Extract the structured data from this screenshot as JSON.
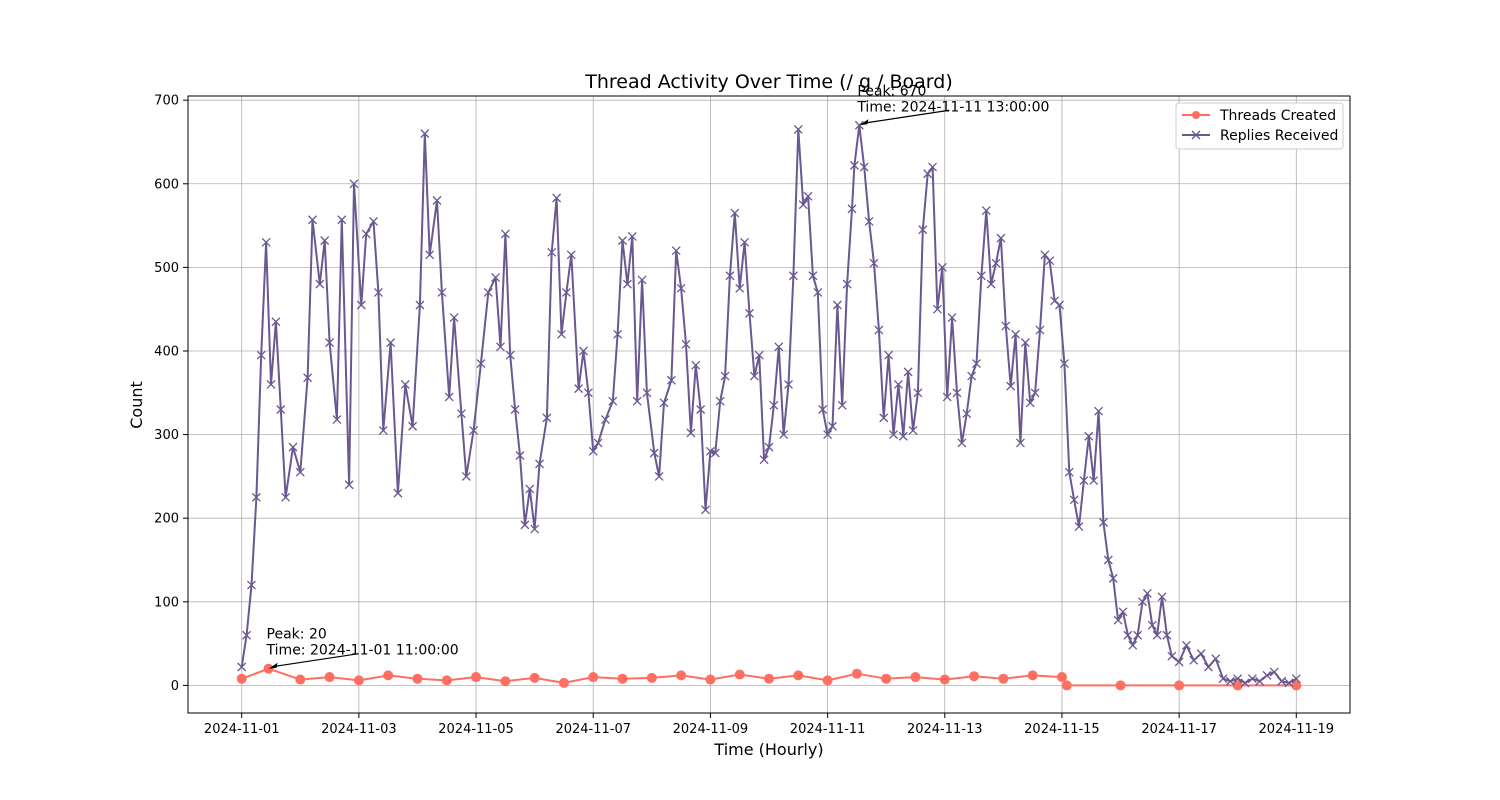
{
  "chart_data": {
    "type": "line",
    "title": "Thread Activity Over Time (/ g / Board)",
    "xlabel": "Time (Hourly)",
    "ylabel": "Count",
    "xlim": [
      "2024-10-31 02:00",
      "2024-11-19 22:00"
    ],
    "ylim": [
      -33,
      705
    ],
    "x_ticks": [
      "2024-11-01",
      "2024-11-03",
      "2024-11-05",
      "2024-11-07",
      "2024-11-09",
      "2024-11-11",
      "2024-11-13",
      "2024-11-15",
      "2024-11-17",
      "2024-11-19"
    ],
    "y_ticks": [
      0,
      100,
      200,
      300,
      400,
      500,
      600,
      700
    ],
    "grid": true,
    "legend": "top-right",
    "series": [
      {
        "name": "Threads Created",
        "color": "#ff6f61",
        "marker": "circle",
        "points": [
          [
            "2024-11-01 00:00",
            8
          ],
          [
            "2024-11-01 11:00",
            20
          ],
          [
            "2024-11-02 00:00",
            7
          ],
          [
            "2024-11-02 12:00",
            10
          ],
          [
            "2024-11-03 00:00",
            6
          ],
          [
            "2024-11-03 12:00",
            12
          ],
          [
            "2024-11-04 00:00",
            8
          ],
          [
            "2024-11-04 12:00",
            6
          ],
          [
            "2024-11-05 00:00",
            10
          ],
          [
            "2024-11-05 12:00",
            5
          ],
          [
            "2024-11-06 00:00",
            9
          ],
          [
            "2024-11-06 12:00",
            3
          ],
          [
            "2024-11-07 00:00",
            10
          ],
          [
            "2024-11-07 12:00",
            8
          ],
          [
            "2024-11-08 00:00",
            9
          ],
          [
            "2024-11-08 12:00",
            12
          ],
          [
            "2024-11-09 00:00",
            7
          ],
          [
            "2024-11-09 12:00",
            13
          ],
          [
            "2024-11-10 00:00",
            8
          ],
          [
            "2024-11-10 12:00",
            12
          ],
          [
            "2024-11-11 00:00",
            6
          ],
          [
            "2024-11-11 12:00",
            14
          ],
          [
            "2024-11-12 00:00",
            8
          ],
          [
            "2024-11-12 12:00",
            10
          ],
          [
            "2024-11-13 00:00",
            7
          ],
          [
            "2024-11-13 12:00",
            11
          ],
          [
            "2024-11-14 00:00",
            8
          ],
          [
            "2024-11-14 12:00",
            12
          ],
          [
            "2024-11-15 00:00",
            10
          ],
          [
            "2024-11-15 02:00",
            0
          ],
          [
            "2024-11-16 00:00",
            0
          ],
          [
            "2024-11-17 00:00",
            0
          ],
          [
            "2024-11-18 00:00",
            0
          ],
          [
            "2024-11-19 00:00",
            0
          ]
        ]
      },
      {
        "name": "Replies Received",
        "color": "#6a5891",
        "marker": "x",
        "points": [
          [
            "2024-11-01 00:00",
            22
          ],
          [
            "2024-11-01 02:00",
            60
          ],
          [
            "2024-11-01 04:00",
            120
          ],
          [
            "2024-11-01 06:00",
            225
          ],
          [
            "2024-11-01 08:00",
            395
          ],
          [
            "2024-11-01 10:00",
            530
          ],
          [
            "2024-11-01 12:00",
            360
          ],
          [
            "2024-11-01 14:00",
            435
          ],
          [
            "2024-11-01 16:00",
            330
          ],
          [
            "2024-11-01 18:00",
            225
          ],
          [
            "2024-11-01 21:00",
            285
          ],
          [
            "2024-11-02 00:00",
            255
          ],
          [
            "2024-11-02 03:00",
            368
          ],
          [
            "2024-11-02 05:00",
            557
          ],
          [
            "2024-11-02 08:00",
            480
          ],
          [
            "2024-11-02 10:00",
            532
          ],
          [
            "2024-11-02 12:00",
            410
          ],
          [
            "2024-11-02 15:00",
            318
          ],
          [
            "2024-11-02 17:00",
            557
          ],
          [
            "2024-11-02 20:00",
            240
          ],
          [
            "2024-11-02 22:00",
            600
          ],
          [
            "2024-11-03 01:00",
            455
          ],
          [
            "2024-11-03 03:00",
            540
          ],
          [
            "2024-11-03 06:00",
            555
          ],
          [
            "2024-11-03 08:00",
            470
          ],
          [
            "2024-11-03 10:00",
            305
          ],
          [
            "2024-11-03 13:00",
            410
          ],
          [
            "2024-11-03 16:00",
            230
          ],
          [
            "2024-11-03 19:00",
            360
          ],
          [
            "2024-11-03 22:00",
            310
          ],
          [
            "2024-11-04 01:00",
            455
          ],
          [
            "2024-11-04 03:00",
            660
          ],
          [
            "2024-11-04 05:00",
            515
          ],
          [
            "2024-11-04 08:00",
            580
          ],
          [
            "2024-11-04 10:00",
            470
          ],
          [
            "2024-11-04 13:00",
            345
          ],
          [
            "2024-11-04 15:00",
            440
          ],
          [
            "2024-11-04 18:00",
            325
          ],
          [
            "2024-11-04 20:00",
            250
          ],
          [
            "2024-11-04 23:00",
            305
          ],
          [
            "2024-11-05 02:00",
            385
          ],
          [
            "2024-11-05 05:00",
            470
          ],
          [
            "2024-11-05 08:00",
            488
          ],
          [
            "2024-11-05 10:00",
            405
          ],
          [
            "2024-11-05 12:00",
            540
          ],
          [
            "2024-11-05 14:00",
            395
          ],
          [
            "2024-11-05 16:00",
            330
          ],
          [
            "2024-11-05 18:00",
            275
          ],
          [
            "2024-11-05 20:00",
            192
          ],
          [
            "2024-11-05 22:00",
            235
          ],
          [
            "2024-11-06 00:00",
            187
          ],
          [
            "2024-11-06 02:00",
            265
          ],
          [
            "2024-11-06 05:00",
            320
          ],
          [
            "2024-11-06 07:00",
            518
          ],
          [
            "2024-11-06 09:00",
            583
          ],
          [
            "2024-11-06 11:00",
            420
          ],
          [
            "2024-11-06 13:00",
            470
          ],
          [
            "2024-11-06 15:00",
            515
          ],
          [
            "2024-11-06 18:00",
            355
          ],
          [
            "2024-11-06 20:00",
            400
          ],
          [
            "2024-11-06 22:00",
            350
          ],
          [
            "2024-11-07 00:00",
            280
          ],
          [
            "2024-11-07 02:00",
            290
          ],
          [
            "2024-11-07 05:00",
            318
          ],
          [
            "2024-11-07 08:00",
            340
          ],
          [
            "2024-11-07 10:00",
            420
          ],
          [
            "2024-11-07 12:00",
            532
          ],
          [
            "2024-11-07 14:00",
            480
          ],
          [
            "2024-11-07 16:00",
            537
          ],
          [
            "2024-11-07 18:00",
            340
          ],
          [
            "2024-11-07 20:00",
            485
          ],
          [
            "2024-11-07 22:00",
            350
          ],
          [
            "2024-11-08 01:00",
            278
          ],
          [
            "2024-11-08 03:00",
            250
          ],
          [
            "2024-11-08 05:00",
            338
          ],
          [
            "2024-11-08 08:00",
            365
          ],
          [
            "2024-11-08 10:00",
            520
          ],
          [
            "2024-11-08 12:00",
            475
          ],
          [
            "2024-11-08 14:00",
            408
          ],
          [
            "2024-11-08 16:00",
            302
          ],
          [
            "2024-11-08 18:00",
            383
          ],
          [
            "2024-11-08 20:00",
            330
          ],
          [
            "2024-11-08 22:00",
            210
          ],
          [
            "2024-11-09 00:00",
            280
          ],
          [
            "2024-11-09 02:00",
            278
          ],
          [
            "2024-11-09 04:00",
            340
          ],
          [
            "2024-11-09 06:00",
            370
          ],
          [
            "2024-11-09 08:00",
            490
          ],
          [
            "2024-11-09 10:00",
            565
          ],
          [
            "2024-11-09 12:00",
            475
          ],
          [
            "2024-11-09 14:00",
            530
          ],
          [
            "2024-11-09 16:00",
            445
          ],
          [
            "2024-11-09 18:00",
            370
          ],
          [
            "2024-11-09 20:00",
            395
          ],
          [
            "2024-11-09 22:00",
            270
          ],
          [
            "2024-11-10 00:00",
            285
          ],
          [
            "2024-11-10 02:00",
            335
          ],
          [
            "2024-11-10 04:00",
            405
          ],
          [
            "2024-11-10 06:00",
            300
          ],
          [
            "2024-11-10 08:00",
            360
          ],
          [
            "2024-11-10 10:00",
            490
          ],
          [
            "2024-11-10 12:00",
            665
          ],
          [
            "2024-11-10 14:00",
            575
          ],
          [
            "2024-11-10 16:00",
            585
          ],
          [
            "2024-11-10 18:00",
            490
          ],
          [
            "2024-11-10 20:00",
            470
          ],
          [
            "2024-11-10 22:00",
            330
          ],
          [
            "2024-11-11 00:00",
            300
          ],
          [
            "2024-11-11 02:00",
            310
          ],
          [
            "2024-11-11 04:00",
            455
          ],
          [
            "2024-11-11 06:00",
            335
          ],
          [
            "2024-11-11 08:00",
            480
          ],
          [
            "2024-11-11 10:00",
            570
          ],
          [
            "2024-11-11 11:00",
            622
          ],
          [
            "2024-11-11 13:00",
            670
          ],
          [
            "2024-11-11 15:00",
            620
          ],
          [
            "2024-11-11 17:00",
            555
          ],
          [
            "2024-11-11 19:00",
            505
          ],
          [
            "2024-11-11 21:00",
            425
          ],
          [
            "2024-11-11 23:00",
            320
          ],
          [
            "2024-11-12 01:00",
            395
          ],
          [
            "2024-11-12 03:00",
            300
          ],
          [
            "2024-11-12 05:00",
            360
          ],
          [
            "2024-11-12 07:00",
            298
          ],
          [
            "2024-11-12 09:00",
            375
          ],
          [
            "2024-11-12 11:00",
            305
          ],
          [
            "2024-11-12 13:00",
            350
          ],
          [
            "2024-11-12 15:00",
            545
          ],
          [
            "2024-11-12 17:00",
            612
          ],
          [
            "2024-11-12 19:00",
            620
          ],
          [
            "2024-11-12 21:00",
            450
          ],
          [
            "2024-11-12 23:00",
            500
          ],
          [
            "2024-11-13 01:00",
            345
          ],
          [
            "2024-11-13 03:00",
            440
          ],
          [
            "2024-11-13 05:00",
            350
          ],
          [
            "2024-11-13 07:00",
            290
          ],
          [
            "2024-11-13 09:00",
            325
          ],
          [
            "2024-11-13 11:00",
            370
          ],
          [
            "2024-11-13 13:00",
            385
          ],
          [
            "2024-11-13 15:00",
            490
          ],
          [
            "2024-11-13 17:00",
            568
          ],
          [
            "2024-11-13 19:00",
            480
          ],
          [
            "2024-11-13 21:00",
            505
          ],
          [
            "2024-11-13 23:00",
            535
          ],
          [
            "2024-11-14 01:00",
            430
          ],
          [
            "2024-11-14 03:00",
            358
          ],
          [
            "2024-11-14 05:00",
            420
          ],
          [
            "2024-11-14 07:00",
            290
          ],
          [
            "2024-11-14 09:00",
            410
          ],
          [
            "2024-11-14 11:00",
            338
          ],
          [
            "2024-11-14 13:00",
            350
          ],
          [
            "2024-11-14 15:00",
            425
          ],
          [
            "2024-11-14 17:00",
            515
          ],
          [
            "2024-11-14 19:00",
            508
          ],
          [
            "2024-11-14 21:00",
            460
          ],
          [
            "2024-11-14 23:00",
            455
          ],
          [
            "2024-11-15 01:00",
            385
          ],
          [
            "2024-11-15 03:00",
            255
          ],
          [
            "2024-11-15 05:00",
            222
          ],
          [
            "2024-11-15 07:00",
            190
          ],
          [
            "2024-11-15 09:00",
            245
          ],
          [
            "2024-11-15 11:00",
            298
          ],
          [
            "2024-11-15 13:00",
            245
          ],
          [
            "2024-11-15 15:00",
            328
          ],
          [
            "2024-11-15 17:00",
            195
          ],
          [
            "2024-11-15 19:00",
            150
          ],
          [
            "2024-11-15 21:00",
            128
          ],
          [
            "2024-11-15 23:00",
            78
          ],
          [
            "2024-11-16 01:00",
            88
          ],
          [
            "2024-11-16 03:00",
            60
          ],
          [
            "2024-11-16 05:00",
            48
          ],
          [
            "2024-11-16 07:00",
            60
          ],
          [
            "2024-11-16 09:00",
            100
          ],
          [
            "2024-11-16 11:00",
            110
          ],
          [
            "2024-11-16 13:00",
            72
          ],
          [
            "2024-11-16 15:00",
            60
          ],
          [
            "2024-11-16 17:00",
            106
          ],
          [
            "2024-11-16 19:00",
            60
          ],
          [
            "2024-11-16 21:00",
            35
          ],
          [
            "2024-11-17 00:00",
            28
          ],
          [
            "2024-11-17 03:00",
            48
          ],
          [
            "2024-11-17 06:00",
            30
          ],
          [
            "2024-11-17 09:00",
            38
          ],
          [
            "2024-11-17 12:00",
            22
          ],
          [
            "2024-11-17 15:00",
            32
          ],
          [
            "2024-11-17 18:00",
            8
          ],
          [
            "2024-11-17 21:00",
            5
          ],
          [
            "2024-11-18 00:00",
            8
          ],
          [
            "2024-11-18 03:00",
            3
          ],
          [
            "2024-11-18 06:00",
            8
          ],
          [
            "2024-11-18 09:00",
            5
          ],
          [
            "2024-11-18 12:00",
            12
          ],
          [
            "2024-11-18 15:00",
            16
          ],
          [
            "2024-11-18 18:00",
            5
          ],
          [
            "2024-11-18 21:00",
            3
          ],
          [
            "2024-11-19 00:00",
            8
          ]
        ]
      }
    ],
    "annotations": [
      {
        "line1": "Peak: 20",
        "line2": "Time: 2024-11-01 11:00:00",
        "target": [
          "2024-11-01 11:00",
          20
        ]
      },
      {
        "line1": "Peak: 670",
        "line2": "Time: 2024-11-11 13:00:00",
        "target": [
          "2024-11-11 13:00",
          670
        ]
      }
    ]
  }
}
